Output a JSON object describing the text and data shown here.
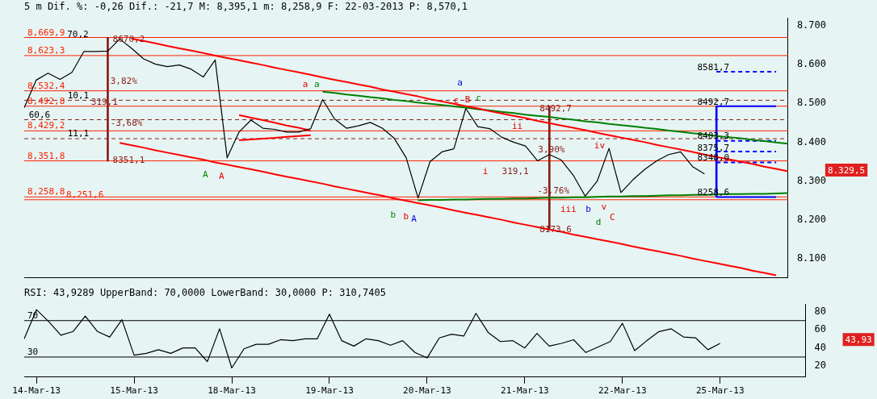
{
  "chart_data": [
    {
      "type": "line",
      "title": "5 m Dif. %: -0,26 Dif.: -21,7 M: 8,395,1 m: 8,258,9 F: 22-03-2013 P: 8,570,1",
      "categories": [
        null,
        null,
        null,
        null,
        null,
        null,
        null,
        null,
        null,
        null,
        null,
        null,
        null,
        null,
        null,
        null,
        null,
        null,
        null,
        null,
        null,
        null,
        null,
        null,
        null,
        null,
        null,
        null,
        null,
        null,
        null,
        null,
        null,
        null,
        null,
        null,
        null,
        null,
        null,
        null,
        null,
        null,
        null,
        null,
        null,
        null,
        null,
        null,
        null,
        null,
        null,
        null,
        null,
        null,
        null,
        null,
        null,
        null,
        null,
        null,
        null,
        null,
        null,
        null,
        null
      ],
      "ylim": [
        8050,
        8720
      ],
      "yticks": [
        {
          "value": 8100,
          "label": "8.100"
        },
        {
          "value": 8200,
          "label": "8.200"
        },
        {
          "value": 8300,
          "label": "8.300"
        },
        {
          "value": 8400,
          "label": "8.400"
        },
        {
          "value": 8500,
          "label": "8.500"
        },
        {
          "value": 8600,
          "label": "8.600"
        },
        {
          "value": 8700,
          "label": "8.700"
        }
      ],
      "tick_labels": "y",
      "grid": false,
      "legend": false,
      "marker": "none",
      "series": [
        {
          "color": "#000000",
          "values": [
            8489,
            8560,
            8578,
            8562,
            8580,
            8634,
            8634,
            8635,
            8666,
            8642,
            8615,
            8601,
            8595,
            8599,
            8588,
            8568,
            8612,
            8360,
            8426,
            8457,
            8436,
            8433,
            8426,
            8426,
            8435,
            8510,
            8460,
            8436,
            8442,
            8451,
            8436,
            8410,
            8360,
            8256,
            8350,
            8375,
            8383,
            8487,
            8440,
            8435,
            8413,
            8400,
            8390,
            8352,
            8368,
            8354,
            8315,
            8261,
            8299,
            8384,
            8270,
            8303,
            8330,
            8352,
            8368,
            8375,
            8337,
            8318,
            null,
            null,
            null,
            null,
            null,
            null,
            null
          ]
        },
        {
          "color": "#ff0000",
          "values": [
            null,
            null,
            null,
            null,
            null,
            null,
            null,
            null,
            null,
            8667,
            8661,
            8655,
            8648,
            8642,
            8636,
            8630,
            8623,
            8617,
            8611,
            8605,
            8599,
            8592,
            8586,
            8580,
            8574,
            8567,
            8561,
            8555,
            8549,
            8543,
            8536,
            8530,
            8524,
            8518,
            8511,
            8505,
            8499,
            8493,
            8487,
            8480,
            8474,
            8468,
            8462,
            8455,
            8449,
            8443,
            8437,
            8431,
            8424,
            8418,
            8412,
            8406,
            8400,
            8393,
            8387,
            8381,
            8375,
            8368,
            8362,
            8356,
            8350,
            8344,
            8337,
            8331,
            8325
          ]
        },
        {
          "color": "#ff0000",
          "values": [
            null,
            null,
            null,
            null,
            null,
            null,
            null,
            null,
            8398,
            8392,
            8386,
            8379,
            8373,
            8367,
            8361,
            8355,
            8348,
            8342,
            8336,
            8330,
            8324,
            8317,
            8311,
            8305,
            8299,
            8293,
            8286,
            8280,
            8274,
            8268,
            8262,
            8255,
            8249,
            8243,
            8237,
            8231,
            8224,
            8218,
            8212,
            8206,
            8200,
            8193,
            8187,
            8181,
            8175,
            8169,
            8162,
            8156,
            8150,
            8144,
            8138,
            8131,
            8125,
            8119,
            8113,
            8107,
            8100,
            8094,
            8088,
            8082,
            8076,
            8069,
            8063,
            8057,
            null
          ]
        },
        {
          "color": "#008000",
          "values": [
            null,
            null,
            null,
            null,
            null,
            null,
            null,
            null,
            null,
            null,
            null,
            null,
            null,
            null,
            null,
            null,
            null,
            null,
            null,
            null,
            null,
            null,
            null,
            null,
            null,
            8530,
            8527,
            8523,
            8520,
            8516,
            8513,
            8509,
            8506,
            8502,
            8499,
            8496,
            8492,
            8489,
            8485,
            8482,
            8478,
            8475,
            8471,
            8468,
            8465,
            8461,
            8458,
            8454,
            8451,
            8447,
            8444,
            8441,
            8437,
            8434,
            8430,
            8427,
            8423,
            8420,
            8416,
            8413,
            8410,
            8406,
            8403,
            8399,
            8396
          ]
        },
        {
          "color": "#008000",
          "values": [
            null,
            null,
            null,
            null,
            null,
            null,
            null,
            null,
            null,
            null,
            null,
            null,
            null,
            null,
            null,
            null,
            null,
            null,
            null,
            null,
            null,
            null,
            null,
            null,
            null,
            null,
            null,
            null,
            null,
            null,
            null,
            null,
            null,
            8250,
            8251,
            8251,
            8252,
            8252,
            8253,
            8254,
            8254,
            8255,
            8255,
            8256,
            8257,
            8257,
            8258,
            8258,
            8259,
            8260,
            8260,
            8261,
            8261,
            8262,
            8263,
            8263,
            8264,
            8264,
            8265,
            8266,
            8266,
            8267,
            8267,
            8268,
            8269
          ]
        },
        {
          "color": "#ff0000",
          "values": [
            null,
            null,
            null,
            null,
            null,
            null,
            null,
            null,
            null,
            null,
            null,
            null,
            null,
            null,
            null,
            null,
            null,
            null,
            8470,
            8463,
            8457,
            8450,
            8443,
            8437,
            8430,
            null,
            null,
            null,
            null,
            null,
            null,
            null,
            null,
            null,
            null,
            null,
            null,
            null,
            null,
            null,
            null,
            null,
            null,
            null,
            null,
            null,
            null,
            null,
            null,
            null,
            null,
            null,
            null,
            null,
            null,
            null,
            null,
            null,
            null,
            null,
            null,
            null,
            null,
            null,
            null
          ]
        },
        {
          "color": "#ff0000",
          "values": [
            null,
            null,
            null,
            null,
            null,
            null,
            null,
            null,
            null,
            null,
            null,
            null,
            null,
            null,
            null,
            null,
            null,
            null,
            8405,
            8407,
            8409,
            8411,
            8414,
            8416,
            8418,
            null,
            null,
            null,
            null,
            null,
            null,
            null,
            null,
            null,
            null,
            null,
            null,
            null,
            null,
            null,
            null,
            null,
            null,
            null,
            null,
            null,
            null,
            null,
            null,
            null,
            null,
            null,
            null,
            null,
            null,
            null,
            null,
            null,
            null,
            null,
            null,
            null,
            null,
            null,
            null
          ]
        },
        {
          "type": "bar",
          "color": "#8b1a1a",
          "values": [
            null,
            null,
            null,
            null,
            null,
            null,
            null,
            319.1,
            null,
            null,
            null,
            null,
            null,
            null,
            null,
            null,
            null,
            null,
            null,
            null,
            null,
            null,
            null,
            null,
            null,
            null,
            null,
            null,
            null,
            null,
            null,
            null,
            null,
            null,
            null,
            null,
            null,
            null,
            null,
            null,
            null,
            null,
            null,
            null,
            319.1,
            null,
            null,
            null,
            null,
            null,
            null,
            null,
            null,
            null,
            null,
            null,
            null,
            null,
            null,
            null,
            null,
            null,
            null,
            null,
            null
          ],
          "base": [
            null,
            null,
            null,
            null,
            null,
            null,
            null,
            8351.1,
            null,
            null,
            null,
            null,
            null,
            null,
            null,
            null,
            null,
            null,
            null,
            null,
            null,
            null,
            null,
            null,
            null,
            null,
            null,
            null,
            null,
            null,
            null,
            null,
            null,
            null,
            null,
            null,
            null,
            null,
            null,
            null,
            null,
            null,
            null,
            null,
            8173.6,
            null,
            null,
            null,
            null,
            null,
            null,
            null,
            null,
            null,
            null,
            null,
            null,
            null,
            null,
            null,
            null,
            null,
            null,
            null,
            null
          ]
        },
        {
          "type": "bar",
          "color": "#0000ff",
          "values": [
            null,
            null,
            null,
            null,
            null,
            null,
            null,
            null,
            null,
            null,
            null,
            null,
            null,
            null,
            null,
            null,
            null,
            null,
            null,
            null,
            null,
            null,
            null,
            null,
            null,
            null,
            null,
            null,
            null,
            null,
            null,
            null,
            null,
            null,
            null,
            null,
            null,
            null,
            null,
            null,
            null,
            null,
            null,
            null,
            null,
            null,
            null,
            null,
            null,
            null,
            null,
            null,
            null,
            null,
            null,
            null,
            null,
            null,
            234.1,
            null,
            null,
            null,
            null,
            null,
            null
          ],
          "base": [
            null,
            null,
            null,
            null,
            null,
            null,
            null,
            null,
            null,
            null,
            null,
            null,
            null,
            null,
            null,
            null,
            null,
            null,
            null,
            null,
            null,
            null,
            null,
            null,
            null,
            null,
            null,
            null,
            null,
            null,
            null,
            null,
            null,
            null,
            null,
            null,
            null,
            null,
            null,
            null,
            null,
            null,
            null,
            null,
            null,
            null,
            null,
            null,
            null,
            null,
            null,
            null,
            null,
            null,
            null,
            null,
            null,
            null,
            8258.6,
            null,
            null,
            null,
            null,
            null,
            null
          ]
        },
        {
          "color": "#0000ff",
          "values": [
            null,
            null,
            null,
            null,
            null,
            null,
            null,
            null,
            null,
            null,
            null,
            null,
            null,
            null,
            null,
            null,
            null,
            null,
            null,
            null,
            null,
            null,
            null,
            null,
            null,
            null,
            null,
            null,
            null,
            null,
            null,
            null,
            null,
            null,
            null,
            null,
            null,
            null,
            null,
            null,
            null,
            null,
            null,
            null,
            null,
            null,
            null,
            null,
            null,
            null,
            null,
            null,
            null,
            null,
            null,
            null,
            null,
            null,
            8492.7,
            8492.7,
            8492.7,
            8492.7,
            8492.7,
            8492.7,
            null
          ]
        },
        {
          "color": "#0000ff",
          "values": [
            null,
            null,
            null,
            null,
            null,
            null,
            null,
            null,
            null,
            null,
            null,
            null,
            null,
            null,
            null,
            null,
            null,
            null,
            null,
            null,
            null,
            null,
            null,
            null,
            null,
            null,
            null,
            null,
            null,
            null,
            null,
            null,
            null,
            null,
            null,
            null,
            null,
            null,
            null,
            null,
            null,
            null,
            null,
            null,
            null,
            null,
            null,
            null,
            null,
            null,
            null,
            null,
            null,
            null,
            null,
            null,
            null,
            null,
            8258.6,
            8258.6,
            8258.6,
            8258.6,
            8258.6,
            8258.6,
            null
          ]
        },
        {
          "color": "#0000ff",
          "line_style": "dashed",
          "values": [
            null,
            null,
            null,
            null,
            null,
            null,
            null,
            null,
            null,
            null,
            null,
            null,
            null,
            null,
            null,
            null,
            null,
            null,
            null,
            null,
            null,
            null,
            null,
            null,
            null,
            null,
            null,
            null,
            null,
            null,
            null,
            null,
            null,
            null,
            null,
            null,
            null,
            null,
            null,
            null,
            null,
            null,
            null,
            null,
            null,
            null,
            null,
            null,
            null,
            null,
            null,
            null,
            null,
            null,
            null,
            null,
            null,
            null,
            8581.7,
            8581.7,
            8581.7,
            8581.7,
            8581.7,
            8581.7,
            null
          ]
        },
        {
          "color": "#0000ff",
          "line_style": "dashed",
          "values": [
            null,
            null,
            null,
            null,
            null,
            null,
            null,
            null,
            null,
            null,
            null,
            null,
            null,
            null,
            null,
            null,
            null,
            null,
            null,
            null,
            null,
            null,
            null,
            null,
            null,
            null,
            null,
            null,
            null,
            null,
            null,
            null,
            null,
            null,
            null,
            null,
            null,
            null,
            null,
            null,
            null,
            null,
            null,
            null,
            null,
            null,
            null,
            null,
            null,
            null,
            null,
            null,
            null,
            null,
            null,
            null,
            null,
            null,
            8403.3,
            8403.3,
            8403.3,
            8403.3,
            8403.3,
            8403.3,
            null
          ]
        },
        {
          "color": "#0000ff",
          "line_style": "dashed",
          "values": [
            null,
            null,
            null,
            null,
            null,
            null,
            null,
            null,
            null,
            null,
            null,
            null,
            null,
            null,
            null,
            null,
            null,
            null,
            null,
            null,
            null,
            null,
            null,
            null,
            null,
            null,
            null,
            null,
            null,
            null,
            null,
            null,
            null,
            null,
            null,
            null,
            null,
            null,
            null,
            null,
            null,
            null,
            null,
            null,
            null,
            null,
            null,
            null,
            null,
            null,
            null,
            null,
            null,
            null,
            null,
            null,
            null,
            null,
            8375.7,
            8375.7,
            8375.7,
            8375.7,
            8375.7,
            8375.7,
            null
          ]
        },
        {
          "color": "#0000ff",
          "line_style": "dashed",
          "values": [
            null,
            null,
            null,
            null,
            null,
            null,
            null,
            null,
            null,
            null,
            null,
            null,
            null,
            null,
            null,
            null,
            null,
            null,
            null,
            null,
            null,
            null,
            null,
            null,
            null,
            null,
            null,
            null,
            null,
            null,
            null,
            null,
            null,
            null,
            null,
            null,
            null,
            null,
            null,
            null,
            null,
            null,
            null,
            null,
            null,
            null,
            null,
            null,
            null,
            null,
            null,
            null,
            null,
            null,
            null,
            null,
            null,
            null,
            8348.0,
            8348.0,
            8348.0,
            8348.0,
            8348.0,
            8348.0,
            null
          ]
        }
      ],
      "ref_lines": [
        {
          "axis": "y",
          "value": 8669.9,
          "label": "8,669,9",
          "color": "#ff2000"
        },
        {
          "axis": "y",
          "value": 8623.3,
          "label": "8,623,3",
          "color": "#ff2000"
        },
        {
          "axis": "y",
          "value": 8532.4,
          "label": "8,532,4",
          "color": "#ff2000"
        },
        {
          "axis": "y",
          "value": 8492.8,
          "label": "8,492,8",
          "color": "#ff2000"
        },
        {
          "axis": "y",
          "value": 8429.2,
          "label": "8,429,2",
          "color": "#ff2000"
        },
        {
          "axis": "y",
          "value": 8351.8,
          "label": "8,351,8",
          "color": "#ff2000"
        },
        {
          "axis": "y",
          "value": 8258.8,
          "label": "8,258,8",
          "color": "#ff2000"
        },
        {
          "axis": "y",
          "value": 8251.6,
          "label": "8,251,6",
          "color": "#ff2000"
        },
        {
          "axis": "y",
          "value": 8508,
          "color": "#8b1a1a",
          "line_style": "dashed"
        },
        {
          "axis": "y",
          "value": 8458,
          "color": "#8b1a1a",
          "line_style": "dashed"
        },
        {
          "axis": "y",
          "value": 8409,
          "color": "#8b1a1a",
          "line_style": "dashed"
        }
      ],
      "annotations": [
        "70,2",
        "10,1",
        "60,6",
        "11,1",
        "8670,2",
        "3,82%",
        "-3,68%",
        "8351,1",
        "319,1",
        "A",
        "A",
        "a",
        "a",
        "b",
        "b",
        "A",
        "a",
        "c",
        "B",
        "c",
        "i",
        "ii",
        "iii",
        "iv",
        "b",
        "v",
        "d",
        "C",
        "8492,7",
        "8173,6",
        "3,90%",
        "319,1",
        "-3,76%",
        "8581,7",
        "8492,7",
        "8403,3",
        "8375,7",
        "8348,0",
        "8258,6",
        "8.329,5"
      ]
    },
    {
      "type": "line",
      "title": "RSI: 43,9289 UpperBand: 70,0000 LowerBand: 30,0000 P: 310,7405",
      "categories": [
        null,
        "14-Mar-13",
        null,
        null,
        null,
        null,
        null,
        null,
        null,
        "15-Mar-13",
        null,
        null,
        null,
        null,
        null,
        null,
        null,
        "18-Mar-13",
        null,
        null,
        null,
        null,
        null,
        null,
        null,
        "19-Mar-13",
        null,
        null,
        null,
        null,
        null,
        null,
        null,
        "20-Mar-13",
        null,
        null,
        null,
        null,
        null,
        null,
        null,
        "21-Mar-13",
        null,
        null,
        null,
        null,
        null,
        null,
        null,
        "22-Mar-13",
        null,
        null,
        null,
        null,
        null,
        null,
        null,
        "25-Mar-13",
        null,
        null,
        null,
        null,
        null,
        null,
        null
      ],
      "ylim": [
        8,
        88
      ],
      "yticks": [
        20,
        40,
        60,
        80
      ],
      "grid": false,
      "legend": false,
      "marker": "none",
      "series": [
        {
          "color": "#000000",
          "values": [
            50,
            82,
            69,
            54,
            58,
            75,
            58,
            52,
            71,
            32,
            34,
            38,
            34,
            40,
            40,
            25,
            61,
            18,
            39,
            44,
            44,
            49,
            48,
            50,
            50,
            77,
            48,
            42,
            50,
            48,
            43,
            48,
            35,
            29,
            51,
            55,
            53,
            78,
            57,
            47,
            48,
            40,
            56,
            42,
            45,
            49,
            35,
            41,
            47,
            67,
            37,
            48,
            58,
            61,
            52,
            51,
            38,
            45,
            null,
            null,
            null,
            null,
            null,
            null,
            null
          ]
        }
      ],
      "ref_lines": [
        {
          "axis": "y",
          "value": 70,
          "label": "70",
          "color": "#000000"
        },
        {
          "axis": "y",
          "value": 30,
          "label": "30",
          "color": "#000000"
        }
      ],
      "annotations": [
        "43,93"
      ]
    }
  ]
}
